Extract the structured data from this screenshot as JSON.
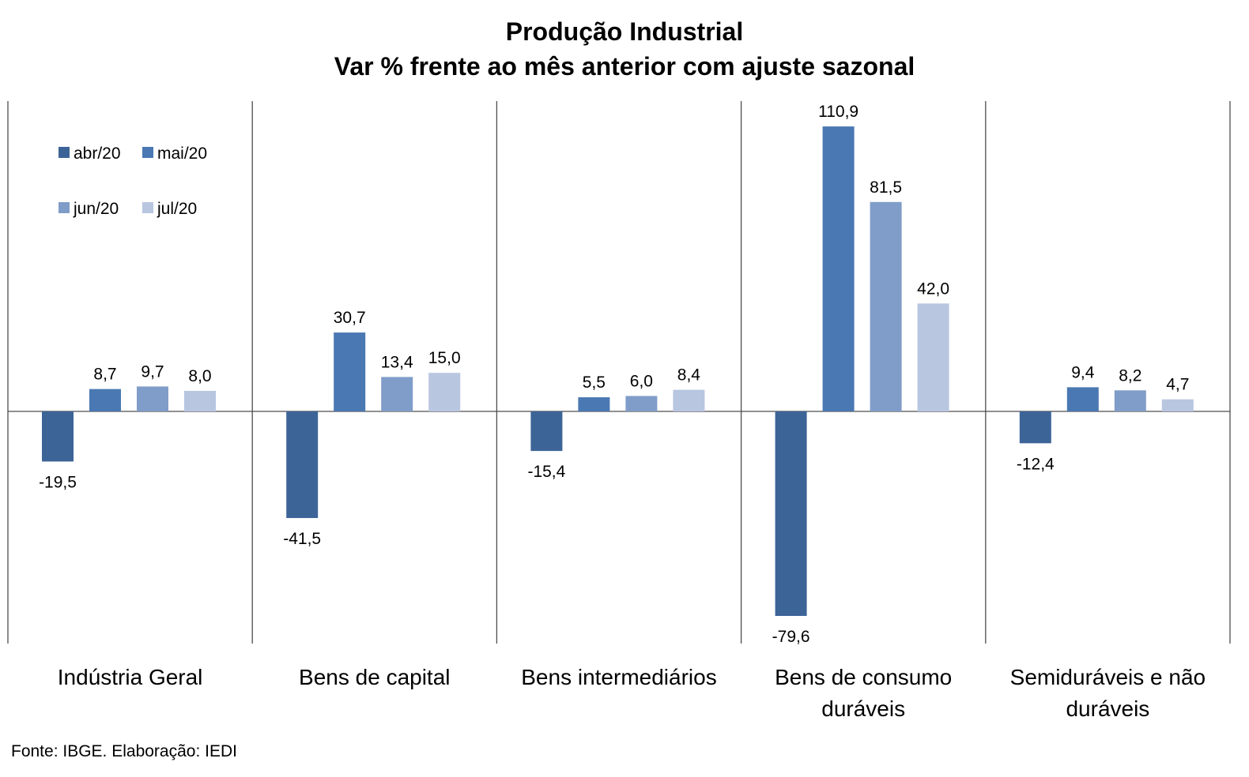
{
  "title": "Produção Industrial",
  "subtitle": "Var % frente ao mês anterior com ajuste sazonal",
  "source": "Fonte: IBGE. Elaboração: IEDI",
  "chart_data": {
    "type": "bar",
    "title": "Produção Industrial",
    "subtitle": "Var % frente ao mês anterior com ajuste sazonal",
    "categories": [
      "Indústria Geral",
      "Bens de capital",
      "Bens intermediários",
      "Bens de consumo duráveis",
      "Semiduráveis e não duráveis"
    ],
    "series": [
      {
        "name": "abr/20",
        "color": "#3d6497",
        "values": [
          -19.5,
          -41.5,
          -15.4,
          -79.6,
          -12.4
        ],
        "labels": [
          "-19,5",
          "-41,5",
          "-15,4",
          "-79,6",
          "-12,4"
        ]
      },
      {
        "name": "mai/20",
        "color": "#4a78b2",
        "values": [
          8.7,
          30.7,
          5.5,
          110.9,
          9.4
        ],
        "labels": [
          "8,7",
          "30,7",
          "5,5",
          "110,9",
          "9,4"
        ]
      },
      {
        "name": "jun/20",
        "color": "#809dc9",
        "values": [
          9.7,
          13.4,
          6.0,
          81.5,
          8.2
        ],
        "labels": [
          "9,7",
          "13,4",
          "6,0",
          "81,5",
          "8,2"
        ]
      },
      {
        "name": "jul/20",
        "color": "#b8c6e0",
        "values": [
          8.0,
          15.0,
          8.4,
          42.0,
          4.7
        ],
        "labels": [
          "8,0",
          "15,0",
          "8,4",
          "42,0",
          "4,7"
        ]
      }
    ],
    "ylim": [
      -90,
      121
    ],
    "grid": false,
    "legend": "top-left"
  }
}
